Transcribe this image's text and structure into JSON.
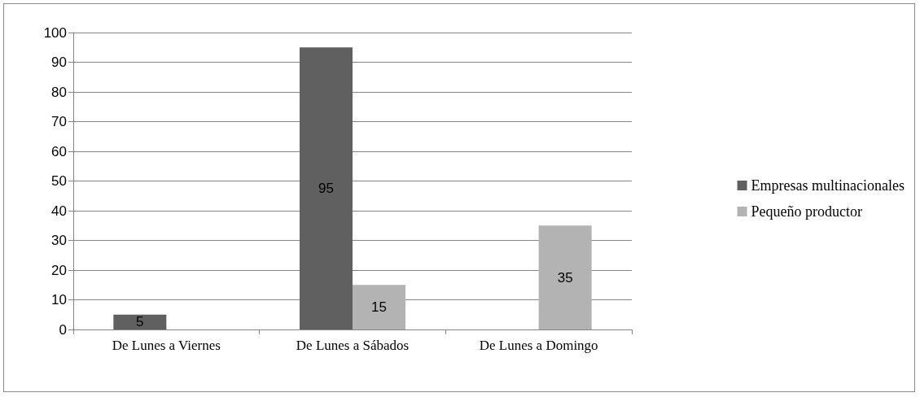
{
  "chart_data": {
    "type": "bar",
    "categories": [
      "De Lunes a Viernes",
      "De Lunes a Sábados",
      "De Lunes a Domingo"
    ],
    "series": [
      {
        "name": "Empresas multinacionales",
        "color": "#606060",
        "values": [
          5,
          95,
          null
        ]
      },
      {
        "name": "Pequeño productor",
        "color": "#b3b3b3",
        "values": [
          null,
          15,
          35
        ]
      }
    ],
    "ylim": [
      0,
      100
    ],
    "yticks": [
      0,
      10,
      20,
      30,
      40,
      50,
      60,
      70,
      80,
      90,
      100
    ],
    "grid": "y",
    "legend": "right",
    "data_labels": true
  }
}
